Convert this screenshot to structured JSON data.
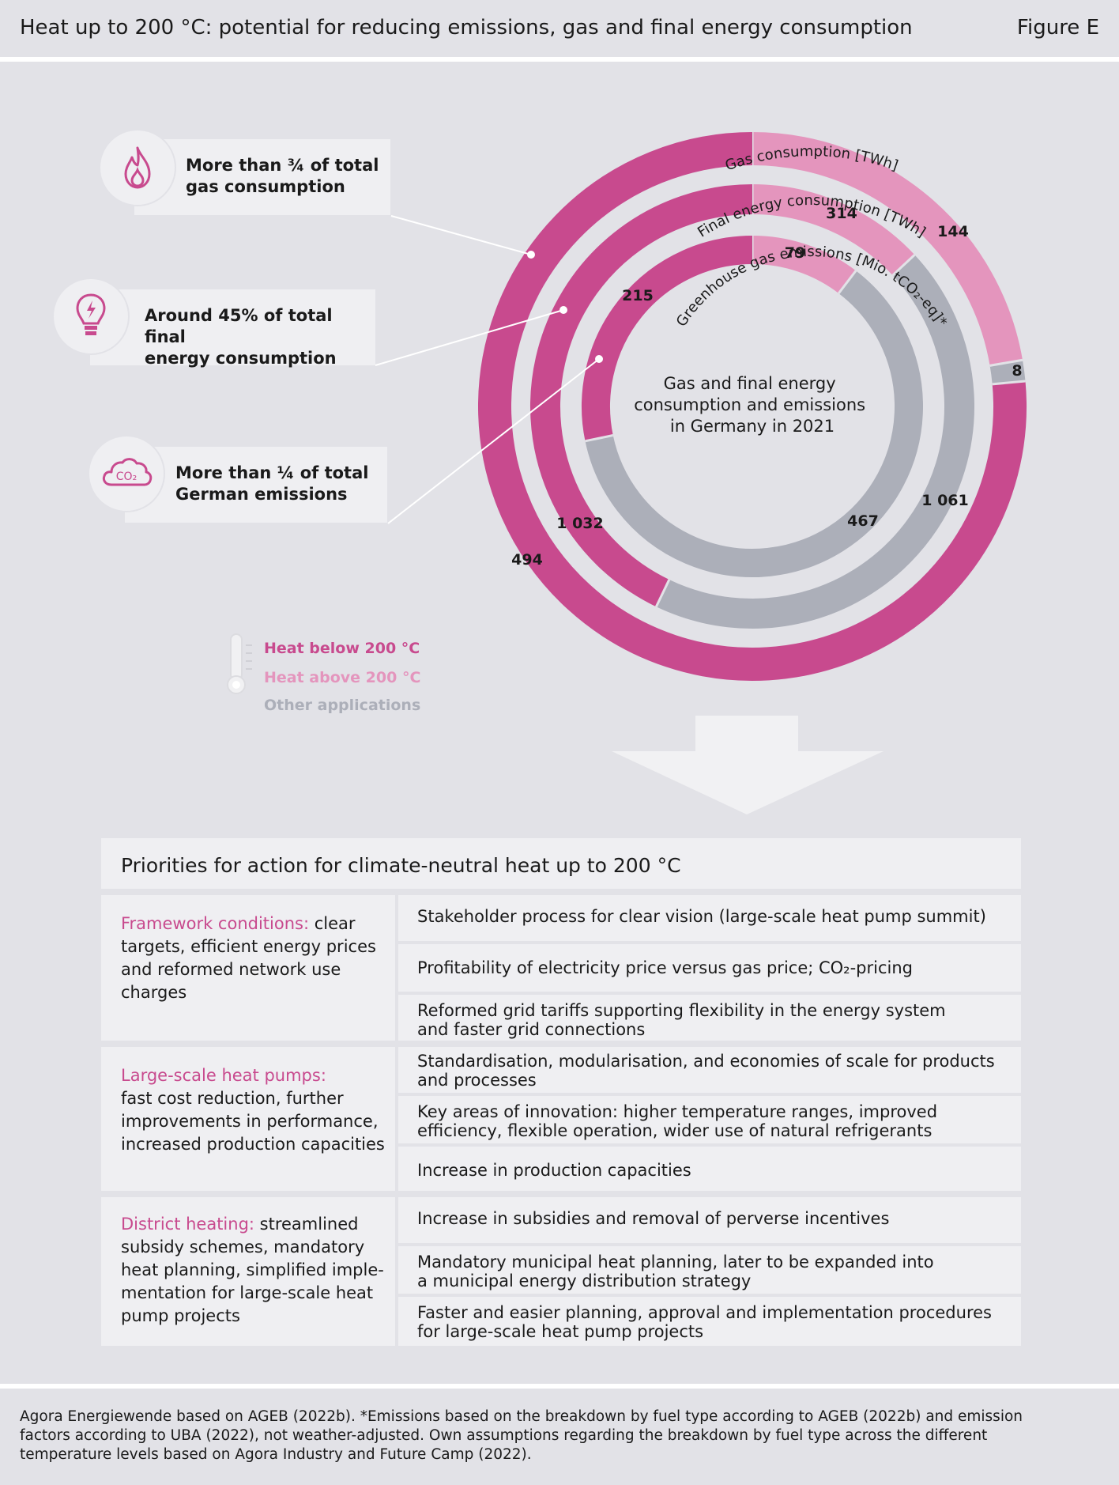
{
  "header": {
    "title": "Heat up to 200 °C: potential for reducing emissions, gas and final energy consumption",
    "figure_label": "Figure E"
  },
  "colors": {
    "heat_below": "#c84a8e",
    "heat_above": "#e495bd",
    "other": "#acafb9",
    "background": "#e2e2e7",
    "panel": "#efeff2"
  },
  "callouts": [
    {
      "icon": "flame-icon",
      "line1": "More than ¾ of total",
      "line2": "gas consumption"
    },
    {
      "icon": "lightbulb-icon",
      "line1": "Around 45% of total final",
      "line2": "energy consumption"
    },
    {
      "icon": "co2-cloud-icon",
      "icon_text": "CO₂",
      "line1": "More than ¼ of total",
      "line2": "German emissions"
    }
  ],
  "center_text": [
    "Gas and final energy",
    "consumption and emissions",
    "in Germany in 2021"
  ],
  "legend": {
    "icon": "thermometer-icon",
    "items": [
      "Heat below 200 °C",
      "Heat above 200 °C",
      "Other applications"
    ]
  },
  "chart_data": {
    "type": "pie",
    "subtype": "nested-donut",
    "center_label": "Gas and final energy consumption and emissions in Germany in 2021",
    "categories": [
      "Heat below 200 °C",
      "Heat above 200 °C",
      "Other applications"
    ],
    "rings": [
      {
        "name": "Gas consumption [TWh]",
        "values": [
          494,
          144,
          8
        ],
        "labels": [
          "494",
          "144",
          "8"
        ]
      },
      {
        "name": "Final energy consumption [TWh]",
        "values": [
          1032,
          314,
          1061
        ],
        "labels": [
          "1 032",
          "314",
          "1 061"
        ]
      },
      {
        "name": "Greenhouse gas emissions [Mio. tCO₂-eq]*",
        "values": [
          215,
          79,
          467
        ],
        "labels": [
          "215",
          "79",
          "467"
        ]
      }
    ]
  },
  "priorities": {
    "title": "Priorities for action for climate-neutral heat up to 200 °C",
    "groups": [
      {
        "heading": "Framework conditions:",
        "text_lines": [
          " clear",
          "targets, efficient energy prices",
          "and reformed network use",
          "charges"
        ],
        "items": [
          [
            "Stakeholder process for clear vision (large-scale heat pump summit)"
          ],
          [
            "Profitability of electricity price versus gas price; CO₂-pricing"
          ],
          [
            "Reformed grid tariffs supporting flexibility in the energy system",
            "and faster grid connections"
          ]
        ]
      },
      {
        "heading": "Large-scale heat pumps:",
        "text_lines": [
          "fast cost reduction, further",
          "improvements in performance,",
          "increased production capacities"
        ],
        "items": [
          [
            "Standardisation, modularisation, and economies of scale for products",
            "and processes"
          ],
          [
            "Key areas of innovation: higher temperature ranges, improved",
            "efficiency, flexible operation, wider use of natural refrigerants"
          ],
          [
            "Increase in production capacities"
          ]
        ]
      },
      {
        "heading": "District heating:",
        "text_lines": [
          " streamlined",
          "subsidy schemes, mandatory",
          "heat planning, simplified imple-",
          "mentation for large-scale  heat",
          "pump projects"
        ],
        "items": [
          [
            "Increase in subsidies and removal of perverse incentives"
          ],
          [
            "Mandatory municipal heat planning, later to be expanded into",
            "a municipal energy distribution strategy"
          ],
          [
            "Faster and easier planning, approval and implementation procedures",
            "for large-scale heat pump projects"
          ]
        ]
      }
    ]
  },
  "footer": {
    "source_lines": [
      "Agora Energiewende based on AGEB (2022b). *Emissions based on the breakdown by fuel type according to AGEB (2022b) and emission",
      "factors according to UBA (2022), not weather-adjusted. Own assumptions regarding the breakdown by fuel type across the different",
      "temperature levels based on Agora Industry and Future Camp (2022)."
    ]
  }
}
